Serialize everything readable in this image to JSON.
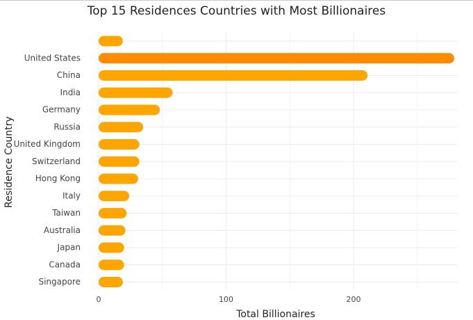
{
  "chart_data": {
    "type": "bar",
    "orientation": "horizontal",
    "title": "Top 15 Residences Countries with Most Billionaires",
    "xlabel": "Total Billionaires",
    "ylabel": "Residence Country",
    "xlim": [
      0,
      275
    ],
    "xticks": [
      0,
      100,
      200
    ],
    "grid": true,
    "categories": [
      "",
      "United States",
      "China",
      "India",
      "Germany",
      "Russia",
      "United Kingdom",
      "Switzerland",
      "Hong Kong",
      "Italy",
      "Taiwan",
      "Australia",
      "Japan",
      "Canada",
      "Singapore"
    ],
    "values": [
      19,
      279,
      211,
      58,
      48,
      35,
      32,
      32,
      31,
      24,
      22,
      21,
      20,
      20,
      19
    ],
    "colors": {
      "top_bar": "#ff8c00",
      "bar": "#ffa500",
      "grid": "#ebebeb",
      "text": "#444444"
    }
  }
}
